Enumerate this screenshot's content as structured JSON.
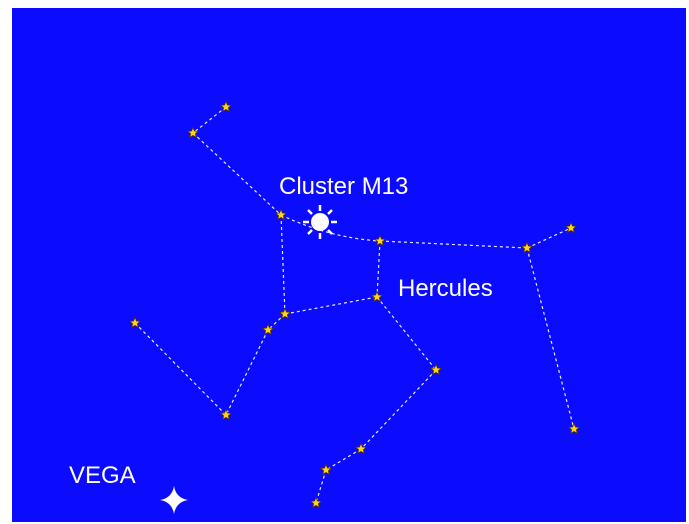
{
  "labels": {
    "cluster": "Cluster M13",
    "constellation": "Hercules",
    "bright_star": "VEGA"
  }
}
